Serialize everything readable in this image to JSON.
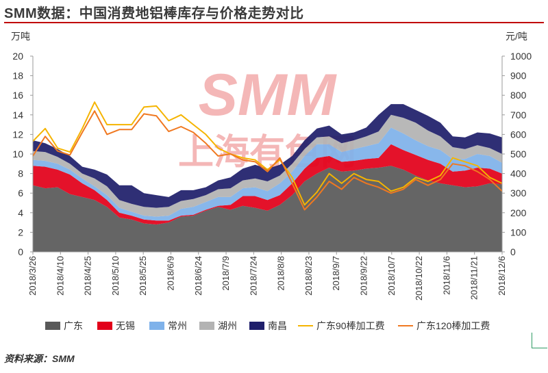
{
  "title": "SMM数据：中国消费地铝棒库存与价格走势对比",
  "source": "资料来源：SMM",
  "watermark": {
    "top": "SMM",
    "bottom": "上海有色网",
    "color": "#f4b7b7"
  },
  "chart_data": {
    "type": "area",
    "title": "SMM数据：中国消费地铝棒库存与价格走势对比",
    "left_axis": {
      "unit": "万吨",
      "ylim": [
        0,
        20
      ],
      "ticks": [
        0,
        2,
        4,
        6,
        8,
        10,
        12,
        14,
        16,
        18,
        20
      ]
    },
    "right_axis": {
      "unit": "元/吨",
      "ylim": [
        0,
        1000
      ],
      "ticks": [
        0,
        100,
        200,
        300,
        400,
        500,
        600,
        700,
        800,
        900,
        1000
      ]
    },
    "x_tick_labels": [
      "2018/3/26",
      "2018/4/10",
      "2018/4/25",
      "2018/5/10",
      "2018/5/25",
      "2018/6/9",
      "2018/6/24",
      "2018/7/9",
      "2018/7/24",
      "2018/8/8",
      "2018/8/23",
      "2018/9/7",
      "2018/9/22",
      "2018/10/7",
      "2018/10/22",
      "2018/11/6",
      "2018/11/21",
      "2018/12/6"
    ],
    "grid": false,
    "legend_position": "bottom",
    "stack_series": [
      {
        "name": "广东",
        "color": "#595959",
        "values": [
          6.8,
          6.5,
          6.6,
          5.9,
          5.6,
          5.3,
          4.6,
          3.5,
          3.3,
          2.9,
          2.8,
          3.0,
          3.6,
          3.7,
          4.2,
          4.6,
          4.3,
          4.7,
          4.5,
          4.2,
          4.8,
          5.8,
          7.2,
          8.0,
          8.6,
          8.2,
          8.3,
          8.5,
          8.6,
          8.8,
          8.4,
          7.8,
          7.3,
          7.0,
          6.8,
          6.6,
          6.7,
          7.0,
          6.9
        ]
      },
      {
        "name": "无锡",
        "color": "#e2001a",
        "values": [
          2.0,
          2.2,
          1.8,
          2.0,
          1.4,
          1.0,
          0.7,
          0.5,
          0.4,
          0.4,
          0.4,
          0.2,
          0.1,
          0.1,
          0.1,
          0.1,
          0.5,
          1.0,
          1.2,
          1.1,
          1.0,
          1.2,
          1.3,
          1.6,
          1.2,
          1.0,
          1.0,
          1.0,
          1.0,
          2.2,
          2.0,
          2.1,
          2.1,
          2.0,
          1.4,
          1.7,
          1.9,
          1.5,
          1.1
        ]
      },
      {
        "name": "常州",
        "color": "#7fb2ea",
        "values": [
          0.6,
          0.6,
          0.6,
          0.5,
          0.5,
          0.4,
          0.5,
          0.5,
          0.4,
          0.4,
          0.4,
          0.5,
          0.7,
          0.8,
          0.8,
          0.9,
          0.8,
          0.8,
          0.9,
          0.9,
          1.2,
          1.2,
          1.3,
          1.4,
          1.2,
          1.0,
          1.2,
          1.3,
          1.5,
          1.7,
          1.7,
          1.5,
          1.4,
          1.4,
          1.3,
          1.2,
          1.4,
          1.3,
          1.1
        ]
      },
      {
        "name": "湖州",
        "color": "#b3b3b3",
        "values": [
          0.9,
          0.9,
          0.7,
          0.6,
          0.5,
          0.8,
          0.9,
          0.8,
          0.8,
          0.9,
          0.9,
          0.9,
          0.8,
          0.8,
          0.7,
          0.8,
          0.9,
          0.8,
          0.9,
          1.0,
          0.8,
          0.8,
          0.7,
          0.7,
          0.8,
          0.9,
          0.9,
          1.0,
          1.2,
          1.3,
          1.6,
          1.8,
          1.6,
          1.4,
          1.2,
          1.0,
          0.9,
          0.8,
          0.9
        ]
      },
      {
        "name": "南昌",
        "color": "#1f1f6b",
        "values": [
          1.1,
          0.9,
          0.8,
          0.8,
          0.7,
          0.9,
          1.2,
          1.5,
          1.9,
          1.4,
          1.3,
          1.0,
          1.1,
          0.9,
          0.8,
          0.9,
          1.1,
          1.2,
          1.4,
          1.3,
          1.1,
          0.8,
          0.9,
          0.9,
          1.1,
          0.9,
          0.8,
          0.9,
          1.7,
          1.1,
          1.4,
          1.3,
          1.5,
          1.4,
          1.1,
          1.2,
          1.3,
          1.5,
          1.7
        ]
      }
    ],
    "line_series": [
      {
        "name": "广东90棒加工费",
        "color": "#f5b400",
        "values": [
          565,
          630,
          530,
          510,
          630,
          765,
          650,
          650,
          650,
          740,
          745,
          670,
          700,
          650,
          600,
          530,
          500,
          480,
          470,
          420,
          470,
          380,
          240,
          305,
          400,
          350,
          400,
          370,
          360,
          310,
          330,
          380,
          360,
          390,
          480,
          460,
          440,
          380,
          350
        ]
      },
      {
        "name": "广东120棒加工费",
        "color": "#f07820",
        "values": [
          490,
          590,
          515,
          495,
          610,
          720,
          600,
          625,
          625,
          705,
          695,
          615,
          640,
          610,
          555,
          490,
          500,
          470,
          460,
          410,
          480,
          350,
          215,
          280,
          360,
          320,
          380,
          350,
          330,
          300,
          320,
          370,
          340,
          370,
          450,
          440,
          410,
          370,
          310
        ]
      }
    ]
  }
}
